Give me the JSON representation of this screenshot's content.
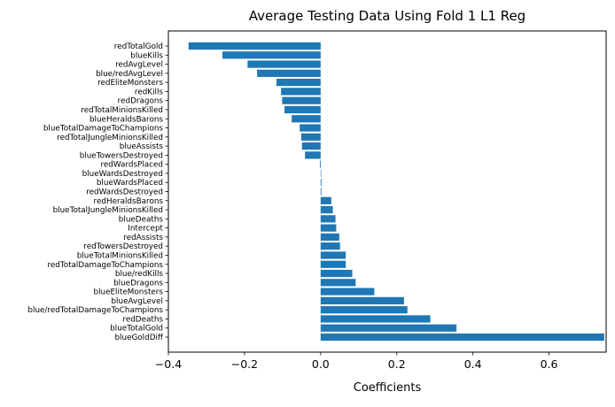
{
  "chart_data": {
    "type": "bar",
    "orientation": "horizontal",
    "title": "Average Testing Data Using Fold 1 L1 Reg",
    "xlabel": "Coefficients",
    "ylabel": "",
    "xlim": [
      -0.4,
      0.75
    ],
    "xticks": [
      -0.4,
      -0.2,
      0.0,
      0.2,
      0.4,
      0.6
    ],
    "xtick_labels": [
      "−0.4",
      "−0.2",
      "0.0",
      "0.2",
      "0.4",
      "0.6"
    ],
    "grid": false,
    "bar_color": "#1f77b4",
    "categories": [
      "blueGoldDiff",
      "blueTotalGold",
      "redDeaths",
      "blue/redTotalDamageToChampions",
      "blueAvgLevel",
      "blueEliteMonsters",
      "blueDragons",
      "blue/redKills",
      "redTotalDamageToChampions",
      "blueTotalMinionsKilled",
      "redTowersDestroyed",
      "redAssists",
      "Intercept",
      "blueDeaths",
      "blueTotalJungleMinionsKilled",
      "redHeraldsBarons",
      "redWardsDestroyed",
      "blueWardsPlaced",
      "blueWardsDestroyed",
      "redWardsPlaced",
      "blueTowersDestroyed",
      "blueAssists",
      "redTotalJungleMinionsKilled",
      "blueTotalDamageToChampions",
      "blueHeraldsBarons",
      "redTotalMinionsKilled",
      "redDragons",
      "redKills",
      "redEliteMonsters",
      "blue/redAvgLevel",
      "redAvgLevel",
      "blueKills",
      "redTotalGold"
    ],
    "values": [
      0.745,
      0.357,
      0.288,
      0.228,
      0.219,
      0.141,
      0.092,
      0.083,
      0.066,
      0.066,
      0.051,
      0.049,
      0.041,
      0.039,
      0.032,
      0.028,
      0.002,
      0.002,
      0.0,
      -0.002,
      -0.041,
      -0.049,
      -0.051,
      -0.055,
      -0.076,
      -0.095,
      -0.101,
      -0.104,
      -0.116,
      -0.167,
      -0.192,
      -0.258,
      -0.347
    ]
  }
}
